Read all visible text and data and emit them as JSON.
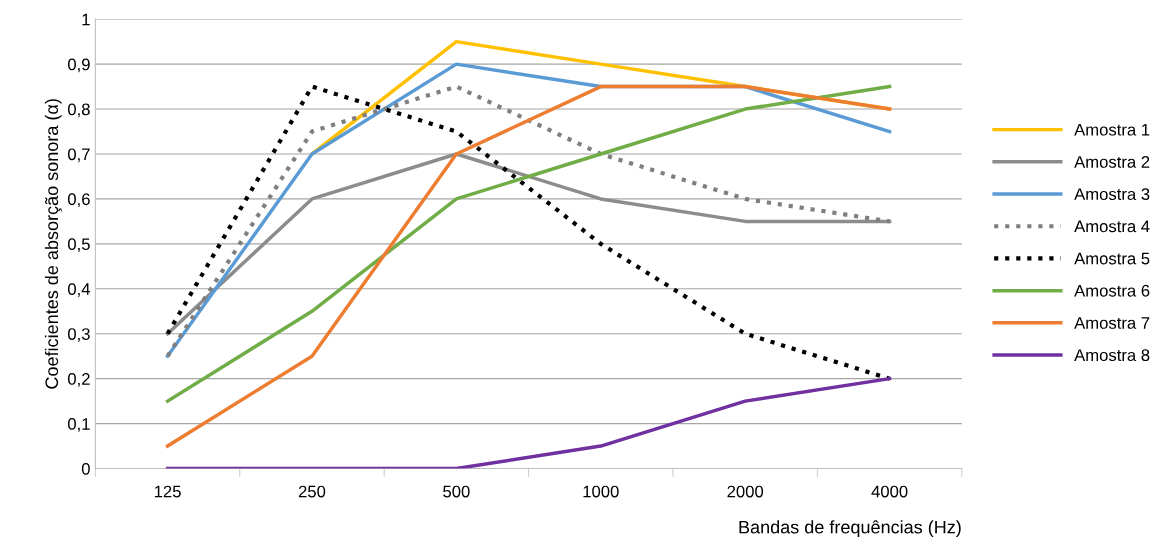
{
  "chart_data": {
    "type": "line",
    "xlabel": "Bandas de frequências (Hz)",
    "ylabel": "Coeficientes de absorção sonora (α)",
    "categories": [
      "125",
      "250",
      "500",
      "1000",
      "2000",
      "4000"
    ],
    "ylim": [
      0,
      1
    ],
    "yticks": [
      0,
      {
        "value": 0.1,
        "label": "0,1"
      },
      {
        "value": 0.2,
        "label": "0,2"
      },
      {
        "value": 0.3,
        "label": "0,3"
      },
      {
        "value": 0.4,
        "label": "0,4"
      },
      {
        "value": 0.5,
        "label": "0,5"
      },
      {
        "value": 0.6,
        "label": "0,6"
      },
      {
        "value": 0.7,
        "label": "0,7"
      },
      {
        "value": 0.8,
        "label": "0,8"
      },
      {
        "value": 0.9,
        "label": "0,9"
      },
      1
    ],
    "grid": "y",
    "legend": "right",
    "series": [
      {
        "name": "Amostra 1",
        "color": "#ffc000",
        "values": [
          null,
          0.7,
          0.95,
          0.9,
          0.85,
          0.8
        ]
      },
      {
        "name": "Amostra 2",
        "color": "#8c8c8c",
        "values": [
          0.3,
          0.6,
          0.7,
          0.6,
          0.55,
          0.55
        ]
      },
      {
        "name": "Amostra 3",
        "color": "#5b9bd5",
        "values": [
          0.25,
          0.7,
          0.9,
          0.85,
          0.85,
          0.75
        ]
      },
      {
        "name": "Amostra 4",
        "color": "#7f7f7f",
        "line_style": "dotted",
        "values": [
          0.25,
          0.75,
          0.85,
          0.7,
          0.6,
          0.55
        ]
      },
      {
        "name": "Amostra 5",
        "color": "#000000",
        "line_style": "dotted",
        "values": [
          0.3,
          0.85,
          0.75,
          0.5,
          0.3,
          0.2
        ]
      },
      {
        "name": "Amostra 6",
        "color": "#70ad47",
        "values": [
          0.15,
          0.35,
          0.6,
          0.7,
          0.8,
          0.85
        ]
      },
      {
        "name": "Amostra 7",
        "color": "#ed7d31",
        "values": [
          0.05,
          0.25,
          0.7,
          0.85,
          0.85,
          0.8
        ]
      },
      {
        "name": "Amostra 8",
        "color": "#7030a0",
        "values": [
          0,
          0,
          0,
          0.05,
          0.15,
          0.2
        ]
      }
    ]
  }
}
